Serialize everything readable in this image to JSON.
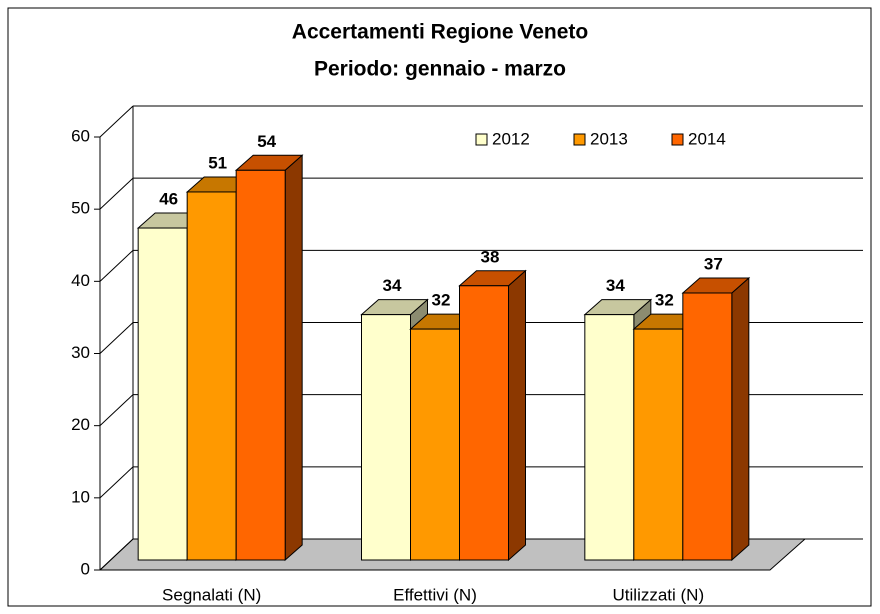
{
  "chart_data": {
    "type": "bar",
    "title": "Accertamenti Regione Veneto",
    "subtitle": "Periodo: gennaio - marzo",
    "categories": [
      "Segnalati (N)",
      "Effettivi (N)",
      "Utilizzati (N)"
    ],
    "series": [
      {
        "name": "2012",
        "color": "#FFFFCC",
        "values": [
          46,
          34,
          34
        ]
      },
      {
        "name": "2013",
        "color": "#FF9900",
        "values": [
          51,
          32,
          32
        ]
      },
      {
        "name": "2014",
        "color": "#FF6600",
        "values": [
          54,
          38,
          37
        ]
      }
    ],
    "ylim": [
      0,
      60
    ],
    "yticks": [
      0,
      10,
      20,
      30,
      40,
      50,
      60
    ],
    "grid": true,
    "legend": "top-right"
  }
}
